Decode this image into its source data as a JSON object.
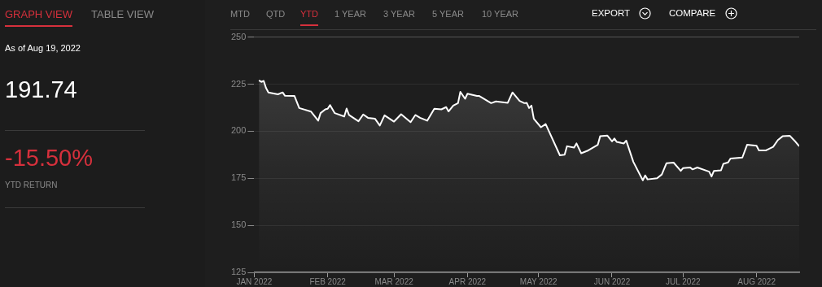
{
  "chart_data": {
    "type": "area",
    "x": [
      "2022-01-03",
      "2022-01-04",
      "2022-01-05",
      "2022-01-06",
      "2022-01-07",
      "2022-01-11",
      "2022-01-13",
      "2022-01-14",
      "2022-01-18",
      "2022-01-20",
      "2022-01-25",
      "2022-01-28",
      "2022-01-29",
      "2022-01-31",
      "2022-02-01",
      "2022-02-02",
      "2022-02-04",
      "2022-02-08",
      "2022-02-09",
      "2022-02-10",
      "2022-02-14",
      "2022-02-16",
      "2022-02-18",
      "2022-02-21",
      "2022-02-23",
      "2022-02-25",
      "2022-03-01",
      "2022-03-04",
      "2022-03-08",
      "2022-03-10",
      "2022-03-12",
      "2022-03-15",
      "2022-03-18",
      "2022-03-21",
      "2022-03-23",
      "2022-03-24",
      "2022-03-26",
      "2022-03-28",
      "2022-03-29",
      "2022-03-31",
      "2022-04-01",
      "2022-04-05",
      "2022-04-06",
      "2022-04-11",
      "2022-04-13",
      "2022-04-18",
      "2022-04-20",
      "2022-04-23",
      "2022-04-25",
      "2022-04-26",
      "2022-04-27",
      "2022-04-28",
      "2022-04-29",
      "2022-05-02",
      "2022-05-04",
      "2022-05-10",
      "2022-05-12",
      "2022-05-13",
      "2022-05-16",
      "2022-05-17",
      "2022-05-19",
      "2022-05-22",
      "2022-05-26",
      "2022-05-27",
      "2022-05-30",
      "2022-06-01",
      "2022-06-02",
      "2022-06-03",
      "2022-06-06",
      "2022-06-07",
      "2022-06-10",
      "2022-06-14",
      "2022-06-15",
      "2022-06-16",
      "2022-06-20",
      "2022-06-22",
      "2022-06-24",
      "2022-06-27",
      "2022-06-30",
      "2022-07-01",
      "2022-07-04",
      "2022-07-05",
      "2022-07-07",
      "2022-07-12",
      "2022-07-13",
      "2022-07-14",
      "2022-07-17",
      "2022-07-18",
      "2022-07-20",
      "2022-07-21",
      "2022-07-26",
      "2022-07-28",
      "2022-08-01",
      "2022-08-02",
      "2022-08-05",
      "2022-08-08",
      "2022-08-10",
      "2022-08-12",
      "2022-08-15",
      "2022-08-17",
      "2022-08-19"
    ],
    "series": [
      {
        "color": "#ffffff",
        "values": [
          227.0,
          226.2,
          226.7,
          222.9,
          220.6,
          219.6,
          220.6,
          218.8,
          218.7,
          212.3,
          210.4,
          205.6,
          209.6,
          211.6,
          211.9,
          213.9,
          209.6,
          207.8,
          212.0,
          208.6,
          205.3,
          208.9,
          207.1,
          206.6,
          203.0,
          208.4,
          205.1,
          209.0,
          204.8,
          208.6,
          207.1,
          205.6,
          211.9,
          211.6,
          212.8,
          210.5,
          213.6,
          214.9,
          220.9,
          217.2,
          219.9,
          218.7,
          218.7,
          214.9,
          215.8,
          215.1,
          220.6,
          216.1,
          214.9,
          215.1,
          212.3,
          213.6,
          206.6,
          202.1,
          203.8,
          187.2,
          187.5,
          192.0,
          191.3,
          193.5,
          188.3,
          189.8,
          192.8,
          197.3,
          197.7,
          194.6,
          196.1,
          194.3,
          193.5,
          195.0,
          183.7,
          173.9,
          176.5,
          174.4,
          175.0,
          177.0,
          183.0,
          183.3,
          178.9,
          180.4,
          180.7,
          179.7,
          180.7,
          178.5,
          175.9,
          178.9,
          179.2,
          182.7,
          183.4,
          185.5,
          186.0,
          192.8,
          192.3,
          189.8,
          189.8,
          191.7,
          195.3,
          197.3,
          197.6,
          195.0,
          192.0
        ]
      }
    ],
    "xlim": [
      "2022-01-01",
      "2022-08-19"
    ],
    "xticks": [
      {
        "value": "2022-01-01",
        "label": "JAN 2022"
      },
      {
        "value": "2022-02-01",
        "label": "FEB 2022"
      },
      {
        "value": "2022-03-01",
        "label": "MAR 2022"
      },
      {
        "value": "2022-04-01",
        "label": "APR 2022"
      },
      {
        "value": "2022-05-01",
        "label": "MAY 2022"
      },
      {
        "value": "2022-06-01",
        "label": "JUN 2022"
      },
      {
        "value": "2022-07-01",
        "label": "JUL 2022"
      },
      {
        "value": "2022-08-01",
        "label": "AUG 2022"
      }
    ],
    "ylim": [
      125,
      250
    ],
    "yticks": [
      125,
      150,
      175,
      200,
      225,
      250
    ],
    "grid": "y",
    "legend": false,
    "annotations": [
      "GRAPH VIEW",
      "TABLE VIEW",
      "As of Aug 19, 2022",
      "191.74",
      "-15.50%",
      "YTD RETURN",
      "MTD",
      "QTD",
      "YTD",
      "1 YEAR",
      "3 YEAR",
      "5 YEAR",
      "10 YEAR",
      "EXPORT",
      "COMPARE"
    ]
  }
}
